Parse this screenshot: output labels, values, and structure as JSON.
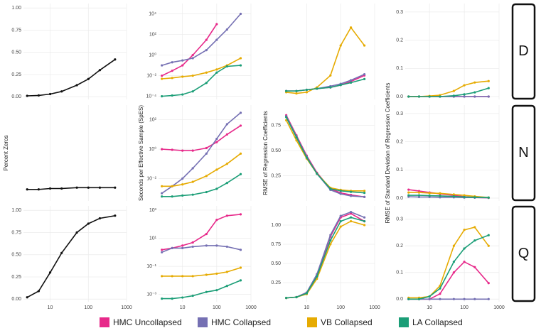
{
  "chart_data": [
    {
      "type": "line",
      "color": "#111111",
      "x": [
        2.5,
        5,
        10,
        20,
        50,
        100,
        200,
        500
      ],
      "values": [
        0.01,
        0.015,
        0.03,
        0.06,
        0.13,
        0.2,
        0.3,
        0.42
      ],
      "xscale": "log",
      "xlim": [
        2,
        1000
      ],
      "xticks": [
        10,
        100,
        1000
      ],
      "ylim": [
        -0.03,
        1.05
      ],
      "yticks": [
        {
          "value": 0,
          "label": "0.00"
        },
        {
          "value": 0.25,
          "label": "0.25"
        },
        {
          "value": 0.5,
          "label": "0.50"
        },
        {
          "value": 0.75,
          "label": "0.75"
        },
        {
          "value": 1,
          "label": "1.00"
        }
      ],
      "grid": true
    },
    {
      "type": "line",
      "x": [
        2.5,
        5,
        10,
        20,
        50,
        100,
        200,
        500
      ],
      "xscale": "log",
      "yscale": "log",
      "xlim": [
        2,
        1000
      ],
      "xticks": [
        10,
        100,
        1000
      ],
      "ylim": [
        5e-05,
        100000
      ],
      "yticks": [
        {
          "value": 0.0001,
          "label": "10⁻⁴"
        },
        {
          "value": 0.01,
          "label": "10⁻²"
        },
        {
          "value": 1,
          "label": "10⁰"
        },
        {
          "value": 100,
          "label": "10²"
        },
        {
          "value": 10000,
          "label": "10⁴"
        }
      ],
      "grid": true,
      "series": [
        {
          "name": "HMC Uncollapsed",
          "color": "#e7298a",
          "values": [
            0.01,
            0.03,
            0.1,
            1,
            30,
            1000,
            null,
            null
          ]
        },
        {
          "name": "HMC Collapsed",
          "color": "#7570b3",
          "values": [
            0.1,
            0.2,
            0.3,
            0.5,
            3,
            30,
            300,
            10000
          ]
        },
        {
          "name": "VB Collapsed",
          "color": "#e6ab02",
          "values": [
            0.005,
            0.006,
            0.008,
            0.01,
            0.02,
            0.04,
            0.1,
            0.5
          ]
        },
        {
          "name": "LA Collapsed",
          "color": "#1b9e77",
          "values": [
            0.0001,
            0.00012,
            0.00015,
            0.0003,
            0.002,
            0.02,
            0.08,
            0.1
          ]
        }
      ]
    },
    {
      "type": "line",
      "x": [
        2.5,
        5,
        10,
        20,
        50,
        100,
        200,
        500
      ],
      "xscale": "log",
      "xlim": [
        2,
        1000
      ],
      "xticks": [
        10,
        100,
        1000
      ],
      "ylim": [
        0,
        0.8
      ],
      "grid": true,
      "series": [
        {
          "name": "HMC Uncollapsed",
          "color": "#e7298a",
          "values": [
            0.07,
            0.07,
            0.08,
            0.09,
            0.1,
            0.12,
            0.15,
            0.2
          ]
        },
        {
          "name": "HMC Collapsed",
          "color": "#7570b3",
          "values": [
            0.07,
            0.07,
            0.08,
            0.09,
            0.11,
            0.13,
            0.16,
            0.21
          ]
        },
        {
          "name": "VB Collapsed",
          "color": "#e6ab02",
          "values": [
            0.06,
            0.05,
            0.06,
            0.1,
            0.2,
            0.45,
            0.6,
            0.45
          ]
        },
        {
          "name": "LA Collapsed",
          "color": "#1b9e77",
          "values": [
            0.07,
            0.07,
            0.08,
            0.09,
            0.1,
            0.12,
            0.14,
            0.17
          ]
        }
      ]
    },
    {
      "type": "line",
      "facet": "D",
      "x": [
        2.5,
        5,
        10,
        20,
        50,
        100,
        200,
        500
      ],
      "xscale": "log",
      "xlim": [
        2,
        1000
      ],
      "xticks": [
        10,
        100,
        1000
      ],
      "ylim": [
        -0.01,
        0.33
      ],
      "yticks": [
        {
          "value": 0,
          "label": "0.0"
        },
        {
          "value": 0.1,
          "label": "0.1"
        },
        {
          "value": 0.2,
          "label": "0.2"
        },
        {
          "value": 0.3,
          "label": "0.3"
        }
      ],
      "grid": true,
      "series": [
        {
          "name": "HMC Uncollapsed",
          "color": "#e7298a",
          "values": [
            0,
            0,
            0,
            0,
            0,
            0,
            0,
            0
          ]
        },
        {
          "name": "HMC Collapsed",
          "color": "#7570b3",
          "values": [
            0,
            0,
            0,
            0,
            0,
            0,
            0,
            0
          ]
        },
        {
          "name": "VB Collapsed",
          "color": "#e6ab02",
          "values": [
            0,
            0,
            0.002,
            0.005,
            0.02,
            0.04,
            0.05,
            0.055
          ]
        },
        {
          "name": "LA Collapsed",
          "color": "#1b9e77",
          "values": [
            0,
            0,
            0,
            0,
            0.003,
            0.008,
            0.015,
            0.03
          ]
        }
      ]
    },
    {
      "type": "line",
      "ylabel": "Percent Zeros",
      "color": "#111111",
      "x": [
        2.5,
        5,
        10,
        20,
        50,
        100,
        200,
        500
      ],
      "values": [
        0.1,
        0.1,
        0.11,
        0.11,
        0.12,
        0.12,
        0.12,
        0.12
      ],
      "xscale": "log",
      "xlim": [
        2,
        1000
      ],
      "xticks": [
        10,
        100,
        1000
      ],
      "ylim": [
        -0.03,
        1.05
      ],
      "grid": true
    },
    {
      "type": "line",
      "ylabel": "Seconds per Effective Sample (SpES)",
      "x": [
        2.5,
        5,
        10,
        20,
        50,
        100,
        200,
        500
      ],
      "xscale": "log",
      "yscale": "log",
      "xlim": [
        2,
        1000
      ],
      "xticks": [
        10,
        100,
        1000
      ],
      "ylim": [
        0.0003,
        1000
      ],
      "yticks": [
        {
          "value": 0.01,
          "label": "10⁻²"
        },
        {
          "value": 1,
          "label": "10⁰"
        },
        {
          "value": 100,
          "label": "10²"
        }
      ],
      "grid": true,
      "series": [
        {
          "name": "HMC Uncollapsed",
          "color": "#e7298a",
          "values": [
            1,
            0.9,
            0.8,
            0.8,
            1.2,
            3,
            10,
            40
          ]
        },
        {
          "name": "HMC Collapsed",
          "color": "#7570b3",
          "values": [
            0.001,
            0.003,
            0.01,
            0.05,
            0.5,
            5,
            50,
            300
          ]
        },
        {
          "name": "VB Collapsed",
          "color": "#e6ab02",
          "values": [
            0.003,
            0.003,
            0.004,
            0.006,
            0.015,
            0.04,
            0.1,
            0.5
          ]
        },
        {
          "name": "LA Collapsed",
          "color": "#1b9e77",
          "values": [
            0.0006,
            0.0006,
            0.0007,
            0.0008,
            0.0012,
            0.002,
            0.005,
            0.02
          ]
        }
      ]
    },
    {
      "type": "line",
      "ylabel": "RMSE of Regression Coefficients",
      "x": [
        2.5,
        5,
        10,
        20,
        50,
        100,
        200,
        500
      ],
      "xscale": "log",
      "xlim": [
        2,
        1000
      ],
      "xticks": [
        10,
        100,
        1000
      ],
      "ylim": [
        0,
        0.95
      ],
      "yticks": [
        0.25,
        {
          "value": 0.5,
          "label": "0.50"
        },
        0.75
      ],
      "grid": true,
      "series": [
        {
          "name": "HMC Uncollapsed",
          "color": "#e7298a",
          "values": [
            0.85,
            0.65,
            0.45,
            0.28,
            0.12,
            0.08,
            0.06,
            0.04
          ]
        },
        {
          "name": "HMC Collapsed",
          "color": "#7570b3",
          "values": [
            0.84,
            0.64,
            0.44,
            0.27,
            0.11,
            0.07,
            0.05,
            0.04
          ]
        },
        {
          "name": "VB Collapsed",
          "color": "#e6ab02",
          "values": [
            0.8,
            0.6,
            0.42,
            0.27,
            0.13,
            0.11,
            0.1,
            0.1
          ]
        },
        {
          "name": "LA Collapsed",
          "color": "#1b9e77",
          "values": [
            0.83,
            0.63,
            0.43,
            0.27,
            0.12,
            0.1,
            0.09,
            0.08
          ]
        }
      ]
    },
    {
      "type": "line",
      "facet": "N",
      "ylabel": "RMSE of Standard Deviation of Regression Coefficients",
      "x": [
        2.5,
        5,
        10,
        20,
        50,
        100,
        200,
        500
      ],
      "xscale": "log",
      "xlim": [
        2,
        1000
      ],
      "xticks": [
        10,
        100,
        1000
      ],
      "ylim": [
        -0.01,
        0.33
      ],
      "yticks": [
        {
          "value": 0,
          "label": "0.0"
        },
        {
          "value": 0.1,
          "label": "0.1"
        },
        {
          "value": 0.2,
          "label": "0.2"
        },
        {
          "value": 0.3,
          "label": "0.3"
        }
      ],
      "grid": true,
      "series": [
        {
          "name": "HMC Uncollapsed",
          "color": "#e7298a",
          "values": [
            0.03,
            0.025,
            0.02,
            0.015,
            0.01,
            0.005,
            0.002,
            0.001
          ]
        },
        {
          "name": "HMC Collapsed",
          "color": "#7570b3",
          "values": [
            0.005,
            0.004,
            0.004,
            0.003,
            0.003,
            0.002,
            0.002,
            0.001
          ]
        },
        {
          "name": "VB Collapsed",
          "color": "#e6ab02",
          "values": [
            0.02,
            0.02,
            0.018,
            0.017,
            0.013,
            0.01,
            0.006,
            0.002
          ]
        },
        {
          "name": "LA Collapsed",
          "color": "#1b9e77",
          "values": [
            0.01,
            0.01,
            0.009,
            0.008,
            0.006,
            0.004,
            0.003,
            0.002
          ]
        }
      ]
    },
    {
      "type": "line",
      "color": "#111111",
      "x": [
        2.5,
        5,
        10,
        20,
        50,
        100,
        200,
        500
      ],
      "values": [
        0.02,
        0.09,
        0.3,
        0.52,
        0.75,
        0.85,
        0.91,
        0.94
      ],
      "xscale": "log",
      "xlim": [
        2,
        1000
      ],
      "xticks": [
        10,
        100,
        1000
      ],
      "xlabels": true,
      "ylim": [
        -0.03,
        1.05
      ],
      "yticks": [
        {
          "value": 0,
          "label": "0.00"
        },
        {
          "value": 0.25,
          "label": "0.25"
        },
        {
          "value": 0.5,
          "label": "0.50"
        },
        {
          "value": 0.75,
          "label": "0.75"
        },
        {
          "value": 1,
          "label": "1.00"
        }
      ],
      "grid": true
    },
    {
      "type": "line",
      "x": [
        2.5,
        5,
        10,
        20,
        50,
        100,
        200,
        500
      ],
      "xscale": "log",
      "yscale": "log",
      "xlim": [
        2,
        1000
      ],
      "xticks": [
        10,
        100,
        1000
      ],
      "xlabels": true,
      "ylim": [
        0.0003,
        2000
      ],
      "yticks": [
        {
          "value": 0.001,
          "label": "10⁻³"
        },
        {
          "value": 0.1,
          "label": "10⁻¹"
        },
        {
          "value": 10,
          "label": "10¹"
        },
        {
          "value": 1000,
          "label": "10³"
        }
      ],
      "grid": true,
      "series": [
        {
          "name": "HMC Uncollapsed",
          "color": "#e7298a",
          "values": [
            1.5,
            2,
            3,
            5,
            20,
            200,
            400,
            500
          ]
        },
        {
          "name": "HMC Collapsed",
          "color": "#7570b3",
          "values": [
            1,
            2,
            2,
            2.5,
            3,
            3,
            2.5,
            1.5
          ]
        },
        {
          "name": "VB Collapsed",
          "color": "#e6ab02",
          "values": [
            0.02,
            0.02,
            0.02,
            0.02,
            0.025,
            0.03,
            0.04,
            0.08
          ]
        },
        {
          "name": "LA Collapsed",
          "color": "#1b9e77",
          "values": [
            0.0005,
            0.0005,
            0.0006,
            0.0008,
            0.0015,
            0.002,
            0.004,
            0.01
          ]
        }
      ]
    },
    {
      "type": "line",
      "x": [
        2.5,
        5,
        10,
        20,
        50,
        100,
        200,
        500
      ],
      "xscale": "log",
      "xlim": [
        2,
        1000
      ],
      "xticks": [
        10,
        100,
        1000
      ],
      "xlabels": true,
      "ylim": [
        0,
        1.25
      ],
      "yticks": [
        0.25,
        {
          "value": 0.5,
          "label": "0.50"
        },
        0.75,
        {
          "value": 1,
          "label": "1.00"
        }
      ],
      "grid": true,
      "series": [
        {
          "name": "HMC Uncollapsed",
          "color": "#e7298a",
          "values": [
            0.05,
            0.06,
            0.12,
            0.35,
            0.85,
            1.1,
            1.15,
            1.05
          ]
        },
        {
          "name": "HMC Collapsed",
          "color": "#7570b3",
          "values": [
            0.05,
            0.06,
            0.12,
            0.36,
            0.87,
            1.12,
            1.17,
            1.1
          ]
        },
        {
          "name": "VB Collapsed",
          "color": "#e6ab02",
          "values": [
            0.05,
            0.06,
            0.1,
            0.3,
            0.75,
            0.98,
            1.05,
            1.0
          ]
        },
        {
          "name": "LA Collapsed",
          "color": "#1b9e77",
          "values": [
            0.05,
            0.06,
            0.11,
            0.33,
            0.8,
            1.05,
            1.1,
            1.05
          ]
        }
      ]
    },
    {
      "type": "line",
      "facet": "Q",
      "x": [
        2.5,
        5,
        10,
        20,
        50,
        100,
        200,
        500
      ],
      "xscale": "log",
      "xlim": [
        2,
        1000
      ],
      "xticks": [
        10,
        100,
        1000
      ],
      "xlabels": true,
      "ylim": [
        -0.01,
        0.35
      ],
      "yticks": [
        {
          "value": 0,
          "label": "0.0"
        },
        {
          "value": 0.1,
          "label": "0.1"
        },
        {
          "value": 0.2,
          "label": "0.2"
        },
        {
          "value": 0.3,
          "label": "0.3"
        }
      ],
      "grid": true,
      "series": [
        {
          "name": "HMC Uncollapsed",
          "color": "#e7298a",
          "values": [
            0,
            0,
            0,
            0.02,
            0.1,
            0.14,
            0.12,
            0.06
          ]
        },
        {
          "name": "HMC Collapsed",
          "color": "#7570b3",
          "values": [
            0,
            0,
            0,
            0,
            0,
            0,
            0,
            0
          ]
        },
        {
          "name": "VB Collapsed",
          "color": "#e6ab02",
          "values": [
            0.005,
            0.005,
            0.01,
            0.05,
            0.2,
            0.26,
            0.27,
            0.2
          ]
        },
        {
          "name": "LA Collapsed",
          "color": "#1b9e77",
          "values": [
            0,
            0,
            0.01,
            0.04,
            0.14,
            0.19,
            0.22,
            0.24
          ]
        }
      ]
    }
  ]
}
